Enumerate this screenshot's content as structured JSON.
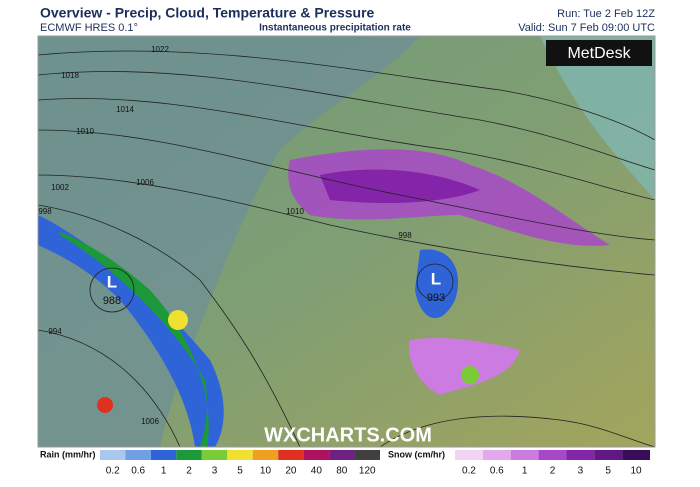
{
  "header": {
    "title": "Overview - Precip, Cloud, Temperature & Pressure",
    "model": "ECMWF HRES 0.1°",
    "subtitle": "Instantaneous precipitation rate",
    "run": "Run: Tue 2 Feb 12Z",
    "valid": "Valid: Sun 7 Feb 09:00 UTC",
    "brand": "MetDesk"
  },
  "map": {
    "watermark": "WXCHARTS.COM",
    "lows": [
      {
        "symbol": "L",
        "pressure": 988
      },
      {
        "symbol": "L",
        "pressure": 993
      }
    ],
    "isobar_labels": [
      1022,
      1018,
      1014,
      1010,
      1006,
      1002,
      998,
      994,
      1006,
      998,
      1010
    ]
  },
  "legend": {
    "rain": {
      "title": "Rain (mm/hr)",
      "labels": [
        0.2,
        0.6,
        1,
        2,
        3,
        5,
        10,
        20,
        40,
        80,
        120
      ],
      "colors": [
        "#a8c8f0",
        "#6fa0e6",
        "#2f64d8",
        "#1c9a3a",
        "#7acb38",
        "#f0e030",
        "#f0a020",
        "#e03020",
        "#b01060",
        "#702080",
        "#404040"
      ]
    },
    "snow": {
      "title": "Snow (cm/hr)",
      "labels": [
        0.2,
        0.6,
        1,
        2,
        3,
        5,
        10
      ],
      "colors": [
        "#f4d4f4",
        "#e4a8ec",
        "#cc7ce0",
        "#a848c8",
        "#8424a8",
        "#601884",
        "#3c0c5c"
      ]
    }
  }
}
